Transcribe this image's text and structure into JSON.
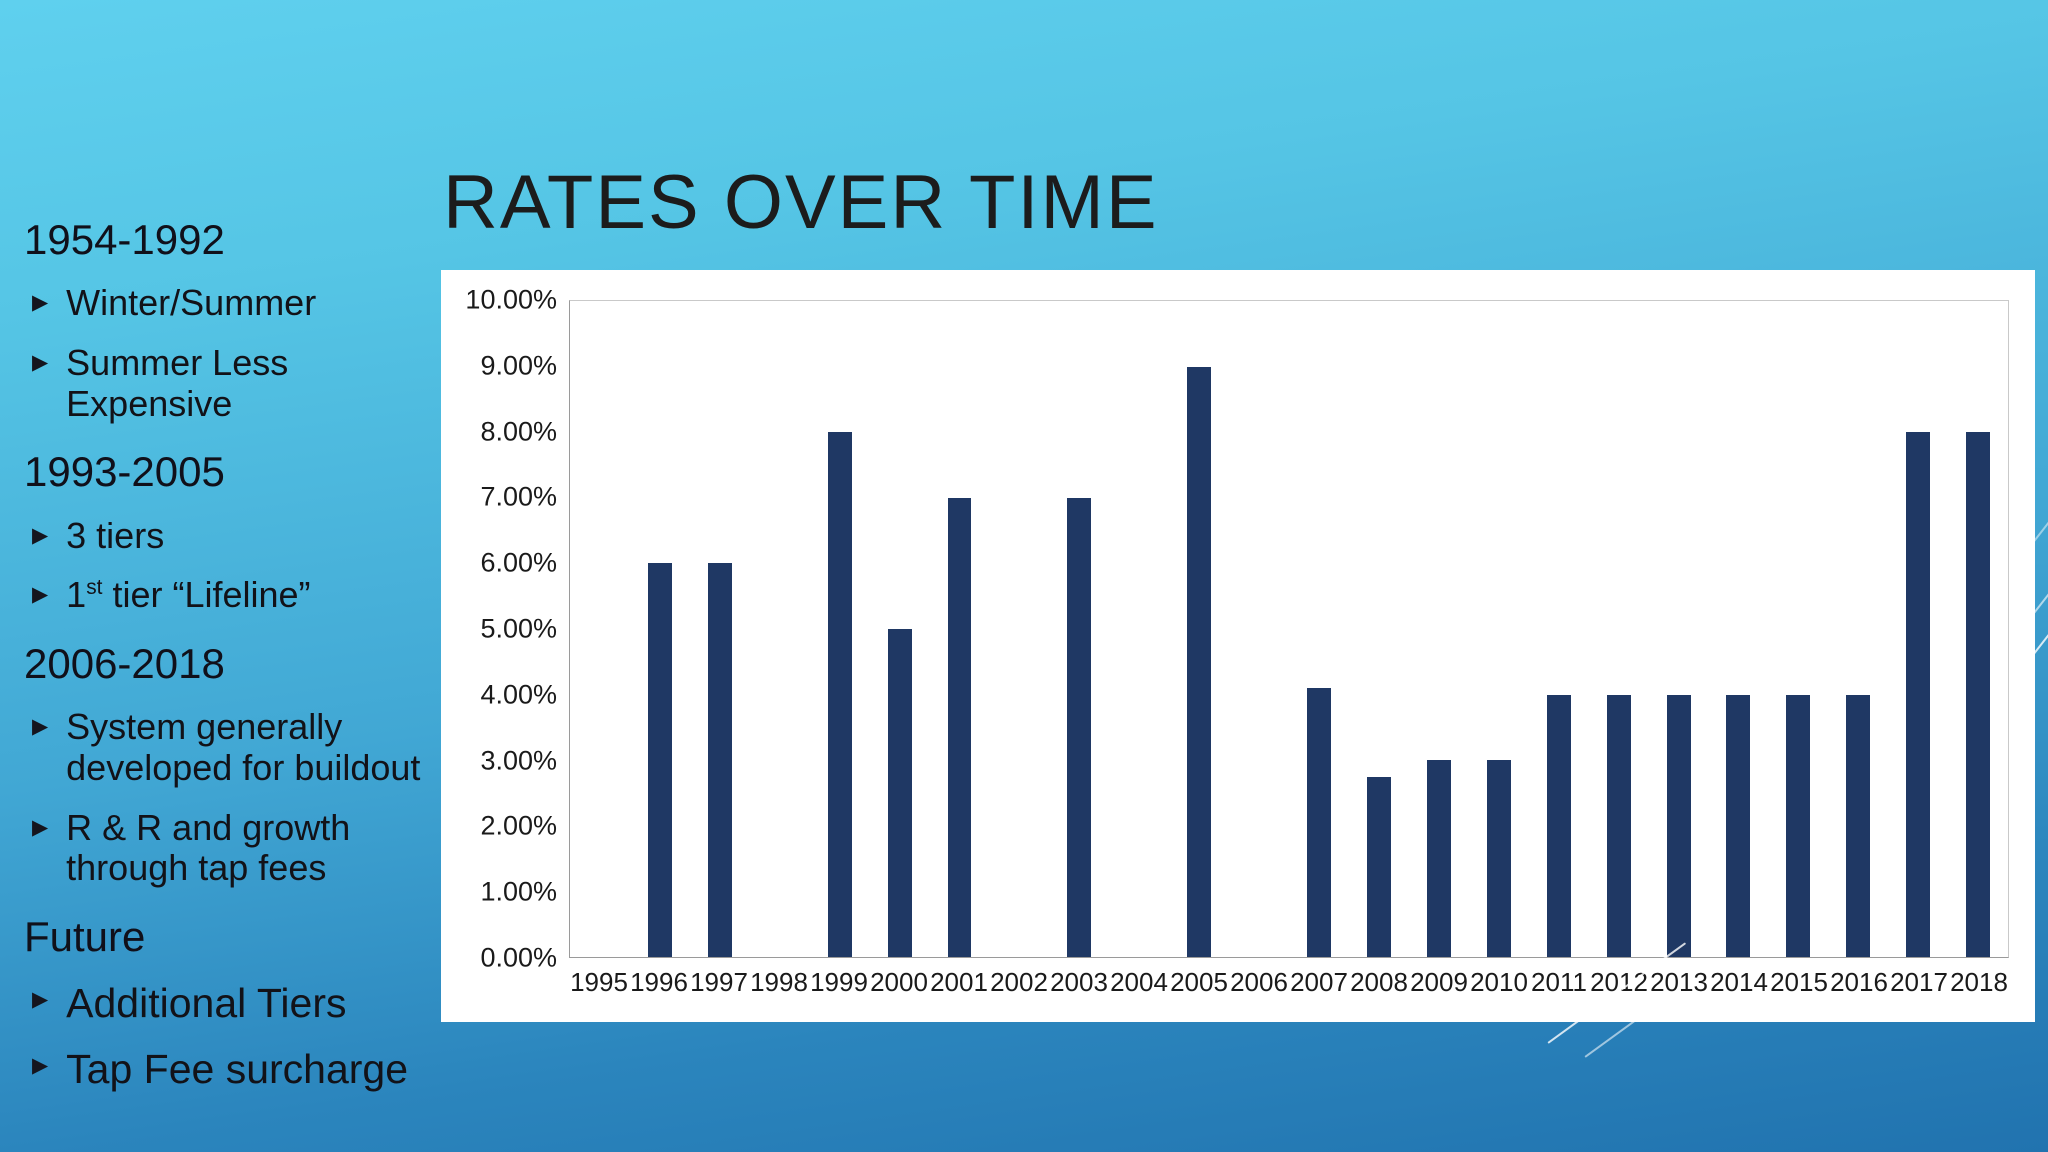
{
  "slide": {
    "title": "RATES OVER TIME",
    "sections": [
      {
        "heading": "1954-1992",
        "bullets": [
          {
            "text": "Winter/Summer"
          },
          {
            "text": "Summer Less Expensive"
          }
        ]
      },
      {
        "heading": "1993-2005",
        "bullets": [
          {
            "text": "3 tiers"
          },
          {
            "pre": "1",
            "sup": "st",
            "post": " tier “Lifeline”"
          }
        ]
      },
      {
        "heading": "2006-2018",
        "bullets": [
          {
            "text": "System generally developed for buildout"
          },
          {
            "text": "R & R and growth through tap fees"
          }
        ]
      },
      {
        "heading": "Future",
        "bullets": [
          {
            "text": "Additional Tiers"
          },
          {
            "text": "Tap Fee surcharge"
          }
        ]
      }
    ]
  },
  "chart_data": {
    "type": "bar",
    "categories": [
      "1995",
      "1996",
      "1997",
      "1998",
      "1999",
      "2000",
      "2001",
      "2002",
      "2003",
      "2004",
      "2005",
      "2006",
      "2007",
      "2008",
      "2009",
      "2010",
      "2011",
      "2012",
      "2013",
      "2014",
      "2015",
      "2016",
      "2017",
      "2018"
    ],
    "values": [
      0,
      6,
      6,
      0,
      8,
      5,
      7,
      0,
      7,
      0,
      9,
      0,
      4.1,
      2.75,
      3,
      3,
      4,
      4,
      4,
      4,
      4,
      4,
      8,
      8
    ],
    "title": "",
    "xlabel": "",
    "ylabel": "",
    "ylim": [
      0,
      10
    ],
    "yticks": [
      "0.00%",
      "1.00%",
      "2.00%",
      "3.00%",
      "4.00%",
      "5.00%",
      "6.00%",
      "7.00%",
      "8.00%",
      "9.00%",
      "10.00%"
    ],
    "grid": false,
    "legend": "none",
    "bar_color": "#1f3864"
  },
  "colors": {
    "bar": "#1f3864",
    "background_top": "#5fd0ee",
    "background_bottom": "#2173af",
    "panel": "#ffffff",
    "text": "#121218"
  }
}
